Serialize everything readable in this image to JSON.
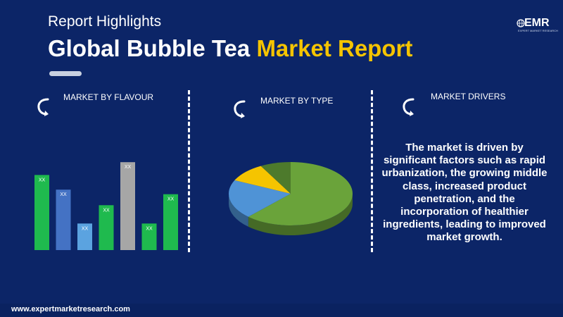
{
  "header": {
    "subtitle": "Report Highlights",
    "title_white": "Global Bubble Tea",
    "title_highlight": "Market Report"
  },
  "logo": {
    "text": "EMR",
    "tagline": "EXPERT MARKET RESEARCH"
  },
  "sections": [
    {
      "label": "MARKET BY FLAVOUR",
      "icon": "refresh-arrow-icon"
    },
    {
      "label": "MARKET BY TYPE",
      "icon": "refresh-arrow-icon"
    },
    {
      "label": "MARKET DRIVERS",
      "icon": "refresh-arrow-icon"
    }
  ],
  "chart_data": [
    {
      "type": "bar",
      "categories": [
        "",
        "",
        "",
        "",
        "",
        "",
        ""
      ],
      "values": [
        0.82,
        0.66,
        0.29,
        0.49,
        0.96,
        0.29,
        0.61
      ],
      "data_labels": [
        "XX",
        "XX",
        "XX",
        "XX",
        "XX",
        "XX",
        "XX"
      ],
      "colors": [
        "#1fba4e",
        "#4472c4",
        "#5ba3e0",
        "#1fba4e",
        "#a6a6a6",
        "#1fba4e",
        "#1fba4e"
      ],
      "title": "",
      "ylim": [
        0,
        1
      ]
    },
    {
      "type": "pie",
      "categories": [
        "",
        "",
        "",
        ""
      ],
      "values": [
        0.62,
        0.2,
        0.1,
        0.08
      ],
      "colors": [
        "#6aa33a",
        "#4f93d6",
        "#f5c400",
        "#4d7a2c"
      ],
      "title": ""
    }
  ],
  "drivers": {
    "text": "The market is driven by significant factors such as rapid urbanization, the growing middle class, increased product penetration, and the incorporation of healthier ingredients, leading to improved market growth."
  },
  "footer": {
    "url": "www.expertmarketresearch.com"
  }
}
